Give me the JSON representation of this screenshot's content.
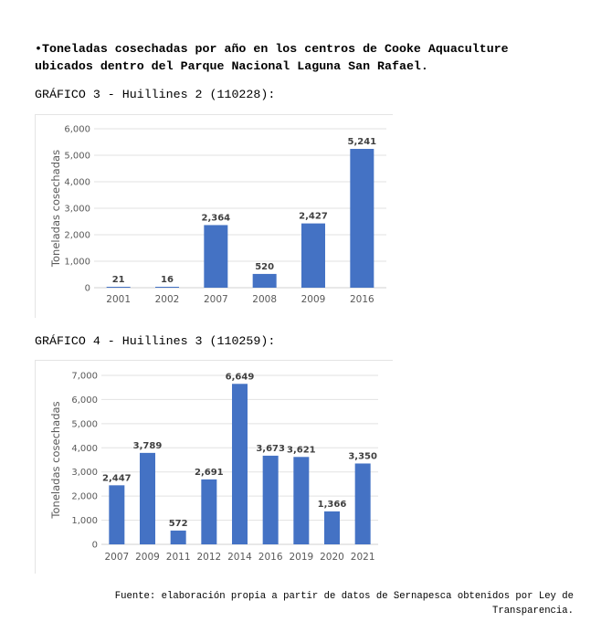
{
  "heading": {
    "line1": "•Toneladas cosechadas por año en los centros de Cooke Aquaculture",
    "line2": "ubicados dentro del Parque Nacional Laguna San Rafael."
  },
  "chart_data": [
    {
      "type": "bar",
      "label": "GRÁFICO 3 - Huillines 2 (110228):",
      "title": "",
      "xlabel": "",
      "ylabel": "Toneladas cosechadas",
      "categories": [
        "2001",
        "2002",
        "2007",
        "2008",
        "2009",
        "2016"
      ],
      "values": [
        21,
        16,
        2364,
        520,
        2427,
        5241
      ],
      "data_labels": [
        "21",
        "16",
        "2,364",
        "520",
        "2,427",
        "5,241"
      ],
      "yticks": [
        "0",
        "1,000",
        "2,000",
        "3,000",
        "4,000",
        "5,000",
        "6,000"
      ],
      "ylim": [
        0,
        6000
      ],
      "grid": true,
      "legend": "none",
      "bar_color": "#4472c4"
    },
    {
      "type": "bar",
      "label": "GRÁFICO 4 - Huillines 3 (110259):",
      "title": "",
      "xlabel": "",
      "ylabel": "Toneladas cosechadas",
      "categories": [
        "2007",
        "2009",
        "2011",
        "2012",
        "2014",
        "2016",
        "2019",
        "2020",
        "2021"
      ],
      "values": [
        2447,
        3789,
        572,
        2691,
        6649,
        3673,
        3621,
        1366,
        3350
      ],
      "data_labels": [
        "2,447",
        "3,789",
        "572",
        "2,691",
        "6,649",
        "3,673",
        "3,621",
        "1,366",
        "3,350"
      ],
      "yticks": [
        "0",
        "1,000",
        "2,000",
        "3,000",
        "4,000",
        "5,000",
        "6,000",
        "7,000"
      ],
      "ylim": [
        0,
        7000
      ],
      "grid": true,
      "legend": "none",
      "bar_color": "#4472c4"
    }
  ],
  "source": {
    "line1": "Fuente: elaboración propia a partir de datos de Sernapesca obtenidos por Ley de",
    "line2": "Transparencia."
  }
}
